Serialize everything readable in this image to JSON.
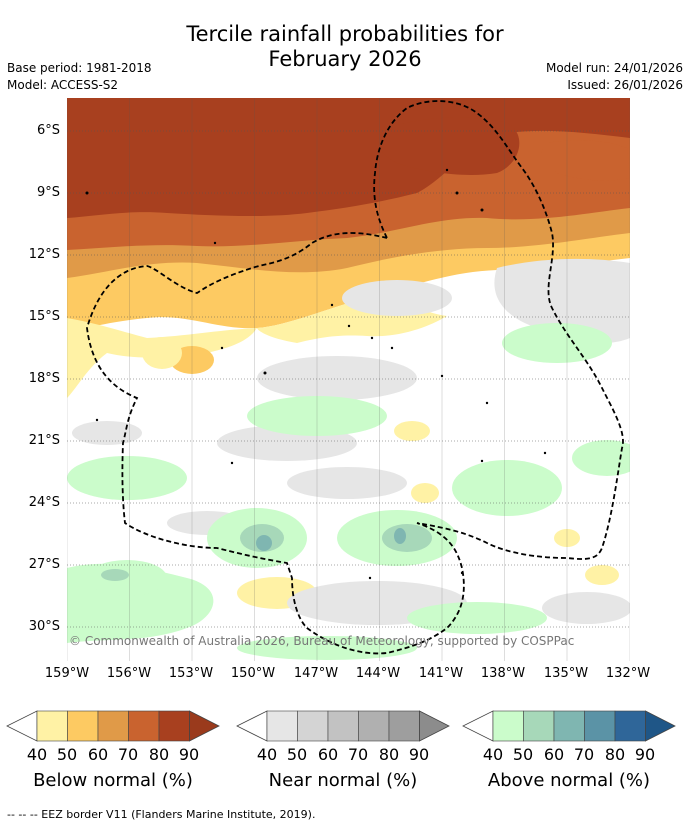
{
  "title_line1": "Tercile rainfall probabilities for",
  "title_line2": "February 2026",
  "base_period": "Base period: 1981-2018",
  "model": "Model: ACCESS-S2",
  "model_run": "Model run: 24/01/2026",
  "issued": "Issued: 26/01/2026",
  "copyright": "© Commonwealth of Australia 2026, Bureau of Meteorology, supported by COSPPac",
  "lat_labels": [
    "6°S",
    "9°S",
    "12°S",
    "15°S",
    "18°S",
    "21°S",
    "24°S",
    "27°S",
    "30°S"
  ],
  "lon_labels": [
    "159°W",
    "156°W",
    "153°W",
    "150°W",
    "147°W",
    "144°W",
    "141°W",
    "138°W",
    "135°W",
    "132°W"
  ],
  "colorbars": [
    {
      "label": "Below normal (%)",
      "ticks": [
        "40",
        "50",
        "60",
        "70",
        "80",
        "90"
      ],
      "colors": [
        "#fff2a5",
        "#fdca62",
        "#e09a48",
        "#c9632f",
        "#a8401f",
        "#9a3a1c"
      ]
    },
    {
      "label": "Near normal (%)",
      "ticks": [
        "40",
        "50",
        "60",
        "70",
        "80",
        "90"
      ],
      "colors": [
        "#e6e6e6",
        "#d4d4d4",
        "#c2c2c2",
        "#b0b0b0",
        "#9e9e9e",
        "#8c8c8c"
      ]
    },
    {
      "label": "Above normal (%)",
      "ticks": [
        "40",
        "50",
        "60",
        "70",
        "80",
        "90"
      ],
      "colors": [
        "#cbfccb",
        "#a7d8b9",
        "#7fb6b1",
        "#5b93a6",
        "#2f6699",
        "#1f5687"
      ]
    }
  ],
  "footer": "--  --  -- EEZ border V11 (Flanders Marine Institute, 2019)."
}
